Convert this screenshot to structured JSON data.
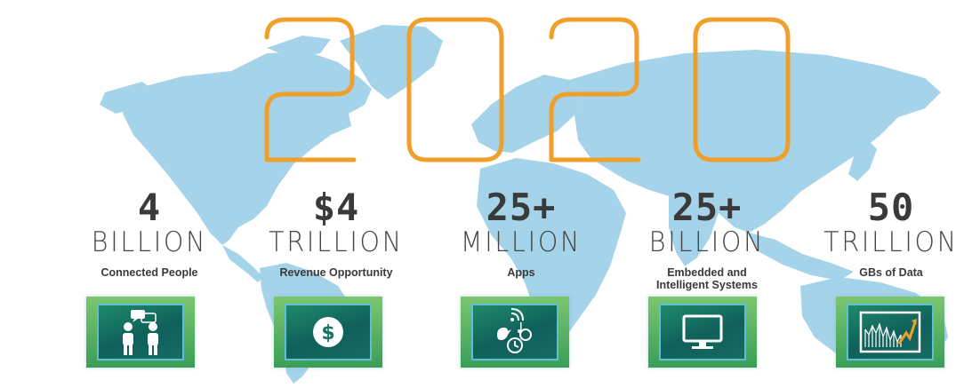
{
  "headline": {
    "year": "2020"
  },
  "stats": [
    {
      "number": "4",
      "unit": "BILLION",
      "description": "Connected People",
      "icon": "people-chat-icon"
    },
    {
      "number": "$4",
      "unit": "TRILLION",
      "description": "Revenue Opportunity",
      "icon": "dollar-coin-icon"
    },
    {
      "number": "25+",
      "unit": "MILLION",
      "description": "Apps",
      "icon": "apps-icon"
    },
    {
      "number": "25+",
      "unit": "BILLION",
      "description": "Embedded and Intelligent Systems",
      "icon": "monitor-icon"
    },
    {
      "number": "50",
      "unit": "TRILLION",
      "description": "GBs of Data",
      "icon": "chart-icon"
    }
  ],
  "colors": {
    "map": "#9fd1e8",
    "year_outline": "#f0a02a",
    "text": "#3a3a3a",
    "tile_frame": "#55ad5c",
    "tile_screen": "#167262"
  }
}
